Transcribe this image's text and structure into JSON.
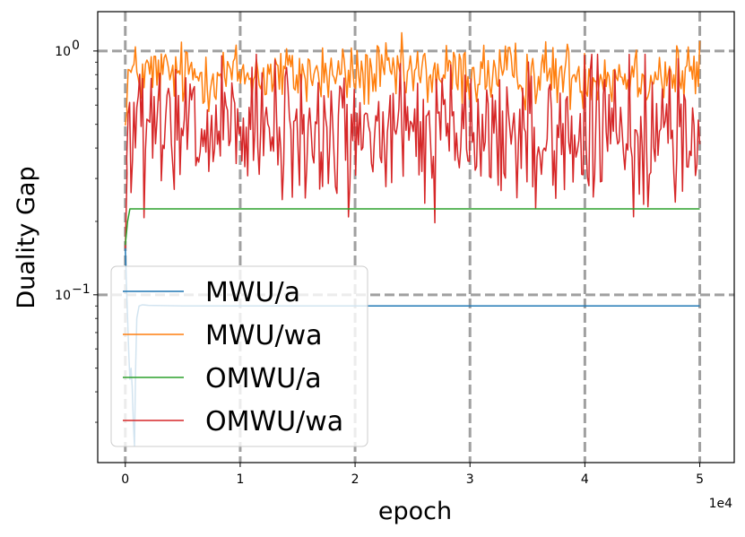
{
  "chart_data": {
    "type": "line",
    "xlabel": "epoch",
    "ylabel": "Duality Gap",
    "x_offset_label": "1e4",
    "yscale": "log",
    "xlim": [
      -0.24,
      5.3
    ],
    "ylim": [
      0.0205,
      1.45
    ],
    "x_ticks": [
      {
        "value": 0,
        "label": "0"
      },
      {
        "value": 1,
        "label": "1"
      },
      {
        "value": 2,
        "label": "2"
      },
      {
        "value": 3,
        "label": "3"
      },
      {
        "value": 4,
        "label": "4"
      },
      {
        "value": 5,
        "label": "5"
      }
    ],
    "y_ticks": [
      {
        "value": 0.1,
        "base": "10",
        "exp": "−1"
      },
      {
        "value": 1,
        "base": "10",
        "exp": "0"
      }
    ],
    "grid": true,
    "legend_position": "lower-left",
    "series": [
      {
        "name": "MWU/a",
        "color": "#1f77b4",
        "x": [
          0,
          0.01,
          0.02,
          0.03,
          0.04,
          0.05,
          0.06,
          0.07,
          0.08,
          0.09,
          0.1,
          0.12,
          0.15,
          0.2,
          0.5,
          1,
          2,
          3,
          4,
          5
        ],
        "y": [
          0.155,
          0.11,
          0.08,
          0.058,
          0.045,
          0.05,
          0.042,
          0.03,
          0.024,
          0.05,
          0.08,
          0.09,
          0.091,
          0.0905,
          0.09,
          0.09,
          0.09,
          0.09,
          0.09,
          0.09
        ]
      },
      {
        "name": "MWU/wa",
        "color": "#ff7f0e",
        "x_range": [
          0,
          5
        ],
        "n_points": 400,
        "typical_range": [
          0.55,
          1.2
        ],
        "mean": 0.8
      },
      {
        "name": "OMWU/a",
        "color": "#2ca02c",
        "x": [
          0,
          0.02,
          0.04,
          5
        ],
        "y": [
          0.16,
          0.2,
          0.225,
          0.225
        ]
      },
      {
        "name": "OMWU/wa",
        "color": "#d62728",
        "x_range": [
          0,
          5
        ],
        "n_points": 400,
        "typical_range": [
          0.17,
          0.95
        ],
        "mean": 0.45
      }
    ]
  }
}
